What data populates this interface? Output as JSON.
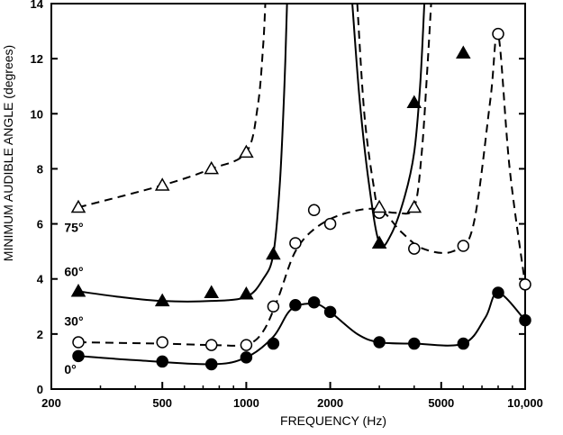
{
  "chart_data": {
    "type": "line",
    "title": "",
    "xlabel": "FREQUENCY (Hz)",
    "ylabel": "MINIMUM AUDIBLE ANGLE (degrees)",
    "xscale": "log",
    "xlim": [
      200,
      10000
    ],
    "ylim": [
      0,
      14
    ],
    "grid": false,
    "legend": "none",
    "x_ticks": [
      {
        "value": 200,
        "label": "200"
      },
      {
        "value": 500,
        "label": "500"
      },
      {
        "value": 1000,
        "label": "1000"
      },
      {
        "value": 2000,
        "label": "2000"
      },
      {
        "value": 5000,
        "label": "5000"
      },
      {
        "value": 10000,
        "label": "10,000"
      }
    ],
    "y_ticks": [
      {
        "value": 0,
        "label": "0"
      },
      {
        "value": 2,
        "label": "2"
      },
      {
        "value": 4,
        "label": "4"
      },
      {
        "value": 6,
        "label": "6"
      },
      {
        "value": 8,
        "label": "8"
      },
      {
        "value": 10,
        "label": "10"
      },
      {
        "value": 12,
        "label": "12"
      },
      {
        "value": 14,
        "label": "14"
      }
    ],
    "series": [
      {
        "name": "0°",
        "marker": "filled-circle",
        "line": "solid",
        "points": [
          [
            250,
            1.2
          ],
          [
            500,
            1.0
          ],
          [
            750,
            0.9
          ],
          [
            1000,
            1.15
          ],
          [
            1250,
            1.65
          ],
          [
            1500,
            3.05
          ],
          [
            1750,
            3.15
          ],
          [
            2000,
            2.8
          ],
          [
            3000,
            1.7
          ],
          [
            4000,
            1.65
          ],
          [
            6000,
            1.65
          ],
          [
            8000,
            3.5
          ],
          [
            10000,
            2.5
          ]
        ],
        "curve": [
          [
            250,
            1.2
          ],
          [
            400,
            1.05
          ],
          [
            750,
            0.9
          ],
          [
            1000,
            1.15
          ],
          [
            1250,
            1.9
          ],
          [
            1450,
            2.9
          ],
          [
            1750,
            3.1
          ],
          [
            2000,
            2.8
          ],
          [
            2500,
            2.0
          ],
          [
            3000,
            1.7
          ],
          [
            4000,
            1.65
          ],
          [
            6000,
            1.65
          ],
          [
            7200,
            2.6
          ],
          [
            8000,
            3.5
          ],
          [
            10000,
            2.5
          ]
        ]
      },
      {
        "name": "30°",
        "marker": "open-circle",
        "line": "dashed",
        "points": [
          [
            250,
            1.7
          ],
          [
            500,
            1.7
          ],
          [
            750,
            1.6
          ],
          [
            1000,
            1.6
          ],
          [
            1250,
            3.0
          ],
          [
            1500,
            5.3
          ],
          [
            1750,
            6.5
          ],
          [
            2000,
            6.0
          ],
          [
            3000,
            6.4
          ],
          [
            4000,
            5.1
          ],
          [
            6000,
            5.2
          ],
          [
            8000,
            12.9
          ],
          [
            10000,
            3.8
          ]
        ],
        "curve": [
          [
            250,
            1.7
          ],
          [
            500,
            1.65
          ],
          [
            750,
            1.6
          ],
          [
            1000,
            1.62
          ],
          [
            1150,
            2.1
          ],
          [
            1300,
            3.3
          ],
          [
            1500,
            5.0
          ],
          [
            1800,
            5.9
          ],
          [
            2300,
            6.4
          ],
          [
            3000,
            6.5
          ],
          [
            3600,
            5.7
          ],
          [
            4300,
            5.1
          ],
          [
            5500,
            5.0
          ],
          [
            6500,
            5.9
          ],
          [
            7500,
            10.5
          ],
          [
            8000,
            12.9
          ],
          [
            8800,
            8.0
          ],
          [
            10000,
            3.8
          ]
        ]
      },
      {
        "name": "60°",
        "marker": "filled-triangle",
        "line": "solid",
        "points": [
          [
            250,
            3.55
          ],
          [
            500,
            3.2
          ],
          [
            750,
            3.5
          ],
          [
            1000,
            3.45
          ],
          [
            1250,
            4.9
          ],
          [
            3000,
            5.3
          ],
          [
            4000,
            10.4
          ],
          [
            6000,
            12.2
          ]
        ],
        "curve_segments": [
          [
            [
              250,
              3.55
            ],
            [
              350,
              3.35
            ],
            [
              500,
              3.2
            ],
            [
              750,
              3.2
            ],
            [
              1000,
              3.35
            ],
            [
              1150,
              4.0
            ],
            [
              1250,
              4.9
            ],
            [
              1320,
              7.5
            ],
            [
              1370,
              11.0
            ],
            [
              1400,
              14.0
            ]
          ],
          [
            [
              2400,
              14.0
            ],
            [
              2550,
              10.5
            ],
            [
              2750,
              7.5
            ],
            [
              3000,
              5.3
            ],
            [
              3300,
              5.6
            ],
            [
              3700,
              7.0
            ],
            [
              4000,
              8.6
            ],
            [
              4200,
              11.0
            ],
            [
              4350,
              14.0
            ]
          ]
        ]
      },
      {
        "name": "75°",
        "marker": "open-triangle",
        "line": "dashed",
        "points": [
          [
            250,
            6.6
          ],
          [
            500,
            7.4
          ],
          [
            750,
            8.0
          ],
          [
            1000,
            8.6
          ],
          [
            3000,
            6.6
          ],
          [
            4000,
            6.6
          ]
        ],
        "curve_segments": [
          [
            [
              250,
              6.6
            ],
            [
              500,
              7.4
            ],
            [
              750,
              8.0
            ],
            [
              1000,
              8.6
            ],
            [
              1100,
              10.3
            ],
            [
              1150,
              12.5
            ],
            [
              1170,
              14.0
            ]
          ],
          [
            [
              2500,
              14.0
            ],
            [
              2650,
              10.0
            ],
            [
              2850,
              7.5
            ],
            [
              3000,
              6.6
            ],
            [
              3500,
              6.4
            ],
            [
              4000,
              6.6
            ],
            [
              4250,
              8.5
            ],
            [
              4450,
              11.5
            ],
            [
              4600,
              14.0
            ]
          ]
        ]
      }
    ],
    "series_labels": [
      {
        "text": "0°",
        "x": 238,
        "y": 0.75
      },
      {
        "text": "30°",
        "x": 238,
        "y": 2.5
      },
      {
        "text": "60°",
        "x": 238,
        "y": 4.3
      },
      {
        "text": "75°",
        "x": 238,
        "y": 5.9
      }
    ]
  }
}
